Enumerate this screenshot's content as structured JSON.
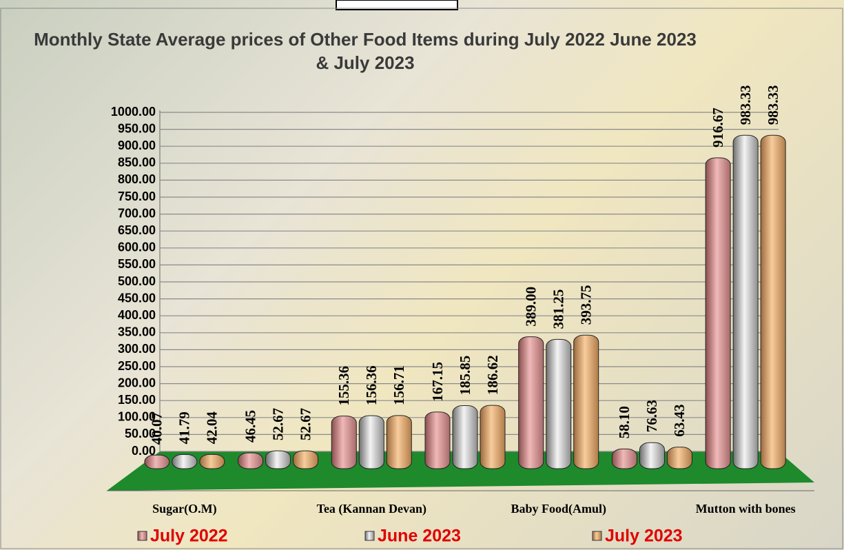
{
  "chart_data": {
    "type": "bar",
    "title": "Monthly State Average prices of Other Food Items during  July 2022  June 2023  & July 2023",
    "categories": [
      "Sugar(O.M)",
      null,
      "Tea (Kannan Devan)",
      null,
      "Baby Food(Amul)",
      null,
      "Mutton with  bones"
    ],
    "series": [
      {
        "name": "July 2022",
        "color": "#e0a4a4",
        "values": [
          40.07,
          46.45,
          155.36,
          167.15,
          389.0,
          58.1,
          916.67
        ],
        "value_labels": [
          "40.07",
          "46.45",
          "155.36",
          "167.15",
          "389.00",
          "58.10",
          "916.67"
        ]
      },
      {
        "name": "June 2023",
        "color": "#c8c8c8",
        "values": [
          41.79,
          52.67,
          156.36,
          185.85,
          381.25,
          76.63,
          983.33
        ],
        "value_labels": [
          "41.79",
          "52.67",
          "156.36",
          "185.85",
          "381.25",
          "76.63",
          "983.33"
        ]
      },
      {
        "name": "July 2023",
        "color": "#e8b484",
        "values": [
          42.04,
          52.67,
          156.71,
          186.62,
          393.75,
          63.43,
          983.33
        ],
        "value_labels": [
          "42.04",
          "52.67",
          "156.71",
          "186.62",
          "393.75",
          "63.43",
          "983.33"
        ]
      }
    ],
    "ylim": [
      0,
      1000
    ],
    "yticks": [
      {
        "value": 0,
        "label": "0.00"
      },
      {
        "value": 50,
        "label": "50.00"
      },
      {
        "value": 100,
        "label": "100.00"
      },
      {
        "value": 150,
        "label": "150.00"
      },
      {
        "value": 200,
        "label": "200.00"
      },
      {
        "value": 250,
        "label": "250.00"
      },
      {
        "value": 300,
        "label": "300.00"
      },
      {
        "value": 350,
        "label": "350.00"
      },
      {
        "value": 400,
        "label": "400.00"
      },
      {
        "value": 450,
        "label": "450.00"
      },
      {
        "value": 500,
        "label": "500.00"
      },
      {
        "value": 550,
        "label": "550.00"
      },
      {
        "value": 600,
        "label": "600.00"
      },
      {
        "value": 650,
        "label": "650.00"
      },
      {
        "value": 700,
        "label": "700.00"
      },
      {
        "value": 750,
        "label": "750.00"
      },
      {
        "value": 800,
        "label": "800.00"
      },
      {
        "value": 850,
        "label": "850.00"
      },
      {
        "value": 900,
        "label": "900.00"
      },
      {
        "value": 950,
        "label": "950.00"
      },
      {
        "value": 1000,
        "label": "1000.00"
      }
    ],
    "grid": true,
    "legend": "bottom"
  }
}
